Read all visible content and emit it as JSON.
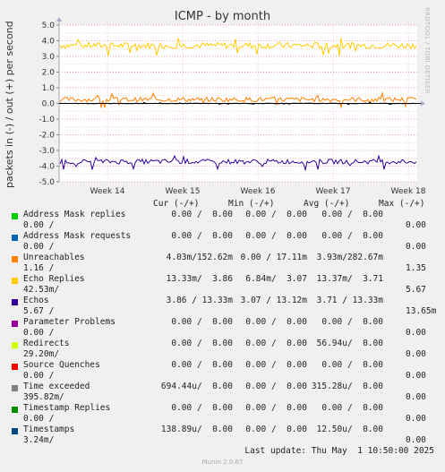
{
  "title": "ICMP - by month",
  "watermark": "RRDTOOL / TOBI OETIKER",
  "chart_data": {
    "type": "line",
    "title": "ICMP - by month",
    "ylabel": "packets in (-) / out (+) per second",
    "ylim": [
      -5.0,
      5.0
    ],
    "yticks": [
      "5.0",
      "4.0",
      "3.0",
      "2.0",
      "1.0",
      "0.0",
      "-1.0",
      "-2.0",
      "-3.0",
      "-4.0",
      "-5.0"
    ],
    "xticks": [
      "Week 14",
      "Week 15",
      "Week 16",
      "Week 17",
      "Week 18"
    ],
    "grid": true,
    "series": [
      {
        "name": "Echo Replies",
        "color": "#ffcc00",
        "approx_level": 3.7,
        "spread": 0.2
      },
      {
        "name": "Unreachables",
        "color": "#ff8000",
        "approx_level": 0.25,
        "spread": 0.15
      },
      {
        "name": "Echos",
        "color": "#330099",
        "approx_level": -3.71,
        "spread": 0.15
      },
      {
        "name": "Time exceeded",
        "color": "#000000",
        "approx_level": 0.0,
        "spread": 0.02
      }
    ]
  },
  "legend": {
    "headers": {
      "cur": "Cur (-/+)",
      "min": "Min (-/+)",
      "avg": "Avg (-/+)",
      "max": "Max (-/+)"
    },
    "rows": [
      {
        "name": "Address Mask replies",
        "color": "#00cc00",
        "cur": "0.00 /  0.00",
        "min": "0.00 /  0.00",
        "avg": "0.00 /  0.00",
        "max": "0.00 /",
        "max2": "0.00"
      },
      {
        "name": "Address Mask requests",
        "color": "#0066b3",
        "cur": "0.00 /  0.00",
        "min": "0.00 /  0.00",
        "avg": "0.00 /  0.00",
        "max": "0.00 /",
        "max2": "0.00"
      },
      {
        "name": "Unreachables",
        "color": "#ff8000",
        "cur": "4.03m/152.62m",
        "min": "0.00 / 17.11m",
        "avg": "3.93m/282.67m",
        "max": "1.16 /",
        "max2": "1.35"
      },
      {
        "name": "Echo Replies",
        "color": "#ffcc00",
        "cur": "13.33m/  3.86",
        "min": "6.84m/  3.07",
        "avg": "13.37m/  3.71",
        "max": "42.53m/",
        "max2": "5.67"
      },
      {
        "name": "Echos",
        "color": "#330099",
        "cur": "3.86 / 13.33m",
        "min": "3.07 / 13.12m",
        "avg": "3.71 / 13.33m",
        "max": "5.67 /",
        "max2": "13.65m"
      },
      {
        "name": "Parameter Problems",
        "color": "#990099",
        "cur": "0.00 /  0.00",
        "min": "0.00 /  0.00",
        "avg": "0.00 /  0.00",
        "max": "0.00 /",
        "max2": "0.00"
      },
      {
        "name": "Redirects",
        "color": "#ccff00",
        "cur": "0.00 /  0.00",
        "min": "0.00 /  0.00",
        "avg": "56.94u/  0.00",
        "max": "29.20m/",
        "max2": "0.00"
      },
      {
        "name": "Source Quenches",
        "color": "#ff0000",
        "cur": "0.00 /  0.00",
        "min": "0.00 /  0.00",
        "avg": "0.00 /  0.00",
        "max": "0.00 /",
        "max2": "0.00"
      },
      {
        "name": "Time exceeded",
        "color": "#808080",
        "cur": "694.44u/  0.00",
        "min": "0.00 /  0.00",
        "avg": "315.28u/  0.00",
        "max": "395.82m/",
        "max2": "0.00"
      },
      {
        "name": "Timestamp Replies",
        "color": "#008f00",
        "cur": "0.00 /  0.00",
        "min": "0.00 /  0.00",
        "avg": "0.00 /  0.00",
        "max": "0.00 /",
        "max2": "0.00"
      },
      {
        "name": "Timestamps",
        "color": "#00487d",
        "cur": "138.89u/  0.00",
        "min": "0.00 /  0.00",
        "avg": "12.50u/  0.00",
        "max": "3.24m/",
        "max2": "0.00"
      }
    ]
  },
  "last_update": "Last update: Thu May  1 10:50:00 2025",
  "munin_version": "Munin 2.0.67"
}
